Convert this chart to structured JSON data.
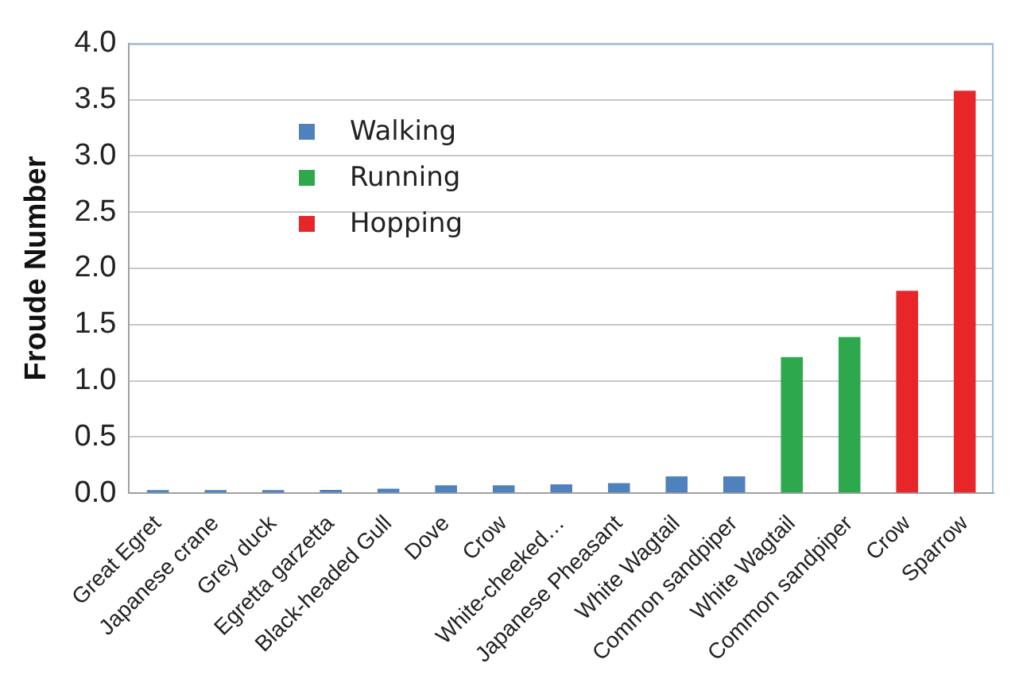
{
  "chart_data": {
    "type": "bar",
    "ylabel": "Froude Number",
    "categories": [
      "Great Egret",
      "Japanese crane",
      "Grey duck",
      "Egretta garzetta",
      "Black-headed Gull",
      "Dove",
      "Crow",
      "White-cheeked…",
      "Japanese Pheasant",
      "White Wagtail",
      "Common sandpiper",
      "White Wagtail",
      "Common sandpiper",
      "Crow",
      "Sparrow"
    ],
    "series": [
      {
        "name": "Walking",
        "color": "#4f81bd",
        "values": [
          0.01,
          0.02,
          0.02,
          0.03,
          0.04,
          0.07,
          0.07,
          0.08,
          0.09,
          0.15,
          0.15,
          null,
          null,
          null,
          null
        ]
      },
      {
        "name": "Running",
        "color": "#2ea84d",
        "values": [
          null,
          null,
          null,
          null,
          null,
          null,
          null,
          null,
          null,
          null,
          null,
          1.21,
          1.39,
          null,
          null
        ]
      },
      {
        "name": "Hopping",
        "color": "#e8262a",
        "values": [
          null,
          null,
          null,
          null,
          null,
          null,
          null,
          null,
          null,
          null,
          null,
          null,
          null,
          1.8,
          3.58
        ]
      }
    ],
    "ylim": [
      0,
      4
    ],
    "yticks": [
      {
        "value": 0,
        "label": "0.0"
      },
      {
        "value": 0.5,
        "label": "0.5"
      },
      {
        "value": 1,
        "label": "1.0"
      },
      {
        "value": 1.5,
        "label": "1.5"
      },
      {
        "value": 2,
        "label": "2.0"
      },
      {
        "value": 2.5,
        "label": "2.5"
      },
      {
        "value": 3,
        "label": "3.0"
      },
      {
        "value": 3.5,
        "label": "3.5"
      },
      {
        "value": 4,
        "label": "4.0"
      }
    ],
    "grid": "y",
    "legend": "top left"
  }
}
